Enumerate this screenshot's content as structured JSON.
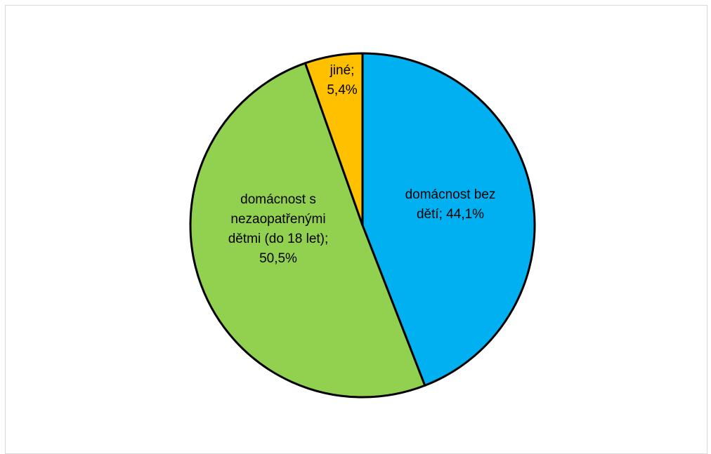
{
  "chart_data": {
    "type": "pie",
    "slices": [
      {
        "name": "domácnost bez dětí",
        "value": 44.1,
        "value_label": "44,1%",
        "color": "#00B0F0",
        "label_lines": [
          "domácnost bez",
          "dětí; 44,1%"
        ]
      },
      {
        "name": "domácnost s nezaopatřenými dětmi (do 18 let)",
        "value": 50.5,
        "value_label": "50,5%",
        "color": "#92D050",
        "label_lines": [
          "domácnost s",
          "nezaopatřenými",
          "dětmi (do 18 let);",
          "50,5%"
        ]
      },
      {
        "name": "jiné",
        "value": 5.4,
        "value_label": "5,4%",
        "color": "#FFC000",
        "label_lines": [
          "jiné;",
          "5,4%"
        ]
      }
    ],
    "start_angle_deg": 0,
    "direction": "clockwise",
    "legend": "none",
    "data_labels": "inside"
  }
}
